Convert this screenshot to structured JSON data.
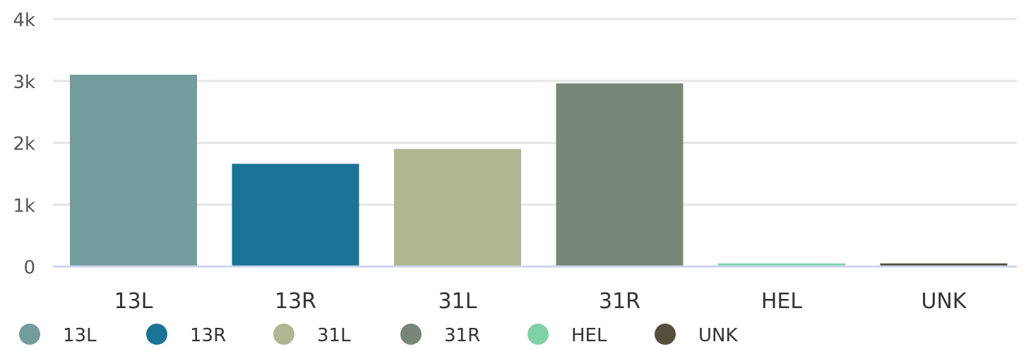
{
  "chart_data": {
    "type": "bar",
    "categories": [
      "13L",
      "13R",
      "31L",
      "31R",
      "HEL",
      "UNK"
    ],
    "values": [
      3100,
      1660,
      1900,
      2960,
      50,
      50
    ],
    "colors": [
      "#739c9d",
      "#1b7395",
      "#b0b592",
      "#788677",
      "#7fd1a7",
      "#564e3f"
    ],
    "ylim": [
      0,
      4000
    ],
    "yticks": [
      0,
      1000,
      2000,
      3000,
      4000
    ],
    "ytick_labels": [
      "0",
      "1k",
      "2k",
      "3k",
      "4k"
    ],
    "grid": true,
    "legend": {
      "placement": "bottom-left",
      "items": [
        "13L",
        "13R",
        "31L",
        "31R",
        "HEL",
        "UNK"
      ]
    }
  }
}
